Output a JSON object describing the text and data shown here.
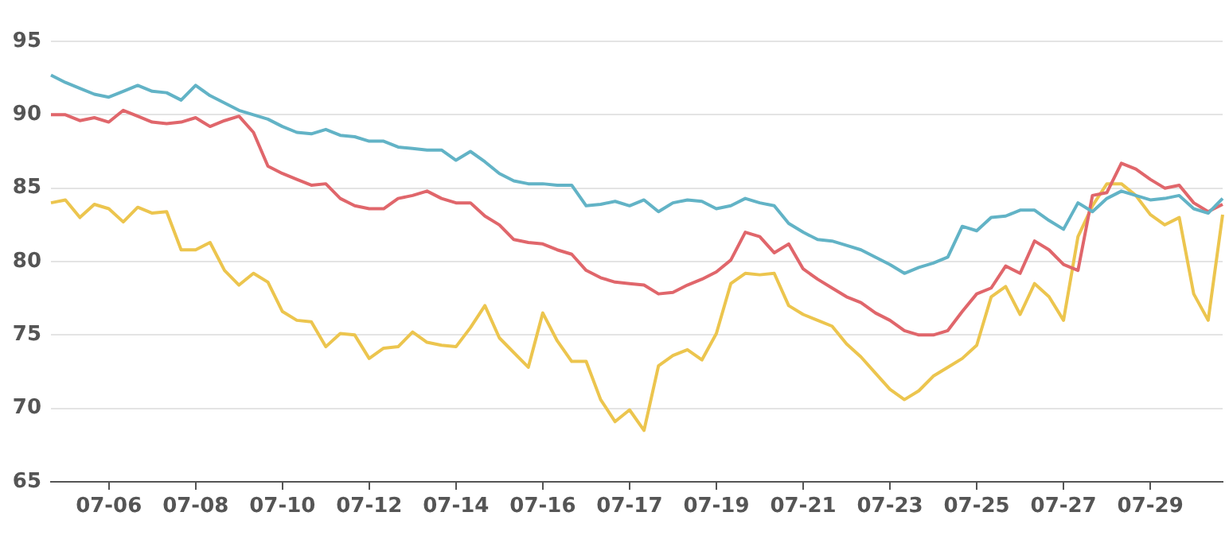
{
  "chart_data": {
    "type": "line",
    "categories": [
      null,
      null,
      null,
      null,
      "07-06",
      null,
      null,
      null,
      null,
      null,
      "07-08",
      null,
      null,
      null,
      null,
      null,
      "07-10",
      null,
      null,
      null,
      null,
      null,
      "07-12",
      null,
      null,
      null,
      null,
      null,
      "07-14",
      null,
      null,
      null,
      null,
      null,
      "07-16",
      null,
      null,
      null,
      null,
      null,
      "07-17",
      null,
      null,
      null,
      null,
      null,
      "07-19",
      null,
      null,
      null,
      null,
      null,
      "07-21",
      null,
      null,
      null,
      null,
      null,
      "07-23",
      null,
      null,
      null,
      null,
      null,
      "07-25",
      null,
      null,
      null,
      null,
      null,
      "07-27",
      null,
      null,
      null,
      null,
      null,
      "07-29",
      null,
      null,
      null,
      null,
      null
    ],
    "series": [
      {
        "color": "#62b3c6",
        "values": [
          92.7,
          92.2,
          91.8,
          91.4,
          91.2,
          91.6,
          92,
          91.6,
          91.5,
          91,
          92,
          91.3,
          90.8,
          90.3,
          90,
          89.7,
          89.2,
          88.8,
          88.7,
          89,
          88.6,
          88.5,
          88.2,
          88.2,
          87.8,
          87.7,
          87.6,
          87.6,
          86.9,
          87.5,
          86.8,
          86,
          85.5,
          85.3,
          85.3,
          85.2,
          85.2,
          83.8,
          83.9,
          84.1,
          83.8,
          84.2,
          83.4,
          84,
          84.2,
          84.1,
          83.6,
          83.8,
          84.3,
          84,
          83.8,
          82.6,
          82,
          81.5,
          81.4,
          81.1,
          80.8,
          80.3,
          79.8,
          79.2,
          79.6,
          79.9,
          80.3,
          82.4,
          82.1,
          83,
          83.1,
          83.5,
          83.5,
          82.8,
          82.2,
          84,
          83.4,
          84.3,
          84.8,
          84.5,
          84.2,
          84.3,
          84.5,
          83.6,
          83.3,
          84.3
        ]
      },
      {
        "color": "#e0666b",
        "values": [
          90,
          90,
          89.6,
          89.8,
          89.5,
          90.3,
          89.9,
          89.5,
          89.4,
          89.5,
          89.8,
          89.2,
          89.6,
          89.9,
          88.8,
          86.5,
          86,
          85.6,
          85.2,
          85.3,
          84.3,
          83.8,
          83.6,
          83.6,
          84.3,
          84.5,
          84.8,
          84.3,
          84,
          84,
          83.1,
          82.5,
          81.5,
          81.3,
          81.2,
          80.8,
          80.5,
          79.4,
          78.9,
          78.6,
          78.5,
          78.4,
          77.8,
          77.9,
          78.4,
          78.8,
          79.3,
          80.1,
          82,
          81.7,
          80.6,
          81.2,
          79.5,
          78.8,
          78.2,
          77.6,
          77.2,
          76.5,
          76,
          75.3,
          75,
          75,
          75.3,
          76.6,
          77.8,
          78.2,
          79.7,
          79.2,
          81.4,
          80.8,
          79.8,
          79.4,
          84.5,
          84.7,
          86.7,
          86.3,
          85.6,
          85,
          85.2,
          84,
          83.4,
          83.9
        ]
      },
      {
        "color": "#ecc54e",
        "values": [
          84,
          84.2,
          83,
          83.9,
          83.6,
          82.7,
          83.7,
          83.3,
          83.4,
          80.8,
          80.8,
          81.3,
          79.4,
          78.4,
          79.2,
          78.6,
          76.6,
          76,
          75.9,
          74.2,
          75.1,
          75,
          73.4,
          74.1,
          74.2,
          75.2,
          74.5,
          74.3,
          74.2,
          75.5,
          77,
          74.8,
          73.8,
          72.8,
          76.5,
          74.6,
          73.2,
          73.2,
          70.6,
          69.1,
          69.9,
          68.5,
          72.9,
          73.6,
          74,
          73.3,
          75.1,
          78.5,
          79.2,
          79.1,
          79.2,
          77,
          76.4,
          76,
          75.6,
          74.4,
          73.5,
          72.4,
          71.3,
          70.6,
          71.2,
          72.2,
          72.8,
          73.4,
          74.3,
          77.6,
          78.3,
          76.4,
          78.5,
          77.6,
          76,
          81.7,
          83.8,
          85.3,
          85.3,
          84.5,
          83.2,
          82.5,
          83,
          77.8,
          76,
          83.2
        ]
      }
    ],
    "ylim": [
      65,
      95
    ],
    "yticks": [
      65,
      70,
      75,
      80,
      85,
      90,
      95
    ],
    "grid": "y",
    "legend": false,
    "marker": "none",
    "line_style": "solid"
  }
}
